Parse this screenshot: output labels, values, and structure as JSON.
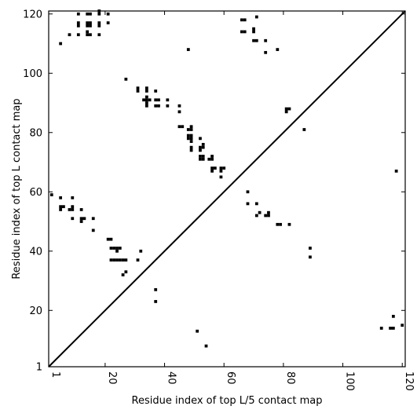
{
  "chart_data": {
    "type": "scatter",
    "title": "",
    "xlabel": "Residue index of top L/5 contact map",
    "ylabel": "Residue index of top L contact map",
    "xlim": [
      1,
      121
    ],
    "ylim": [
      1,
      121
    ],
    "x_ticks": [
      1,
      20,
      40,
      60,
      80,
      100,
      120
    ],
    "y_ticks": [
      1,
      20,
      40,
      60,
      80,
      100,
      120
    ],
    "x_tick_labels": [
      "1",
      "20",
      "40",
      "60",
      "80",
      "100",
      "120"
    ],
    "y_tick_labels": [
      "1",
      "20",
      "40",
      "60",
      "80",
      "100",
      "120"
    ],
    "x_tick_rotation": "vertical",
    "grid": false,
    "diagonal_line": true,
    "marker": "square",
    "color": "#000000",
    "series": [
      {
        "points": [
          [
            11,
            120
          ],
          [
            14,
            120
          ],
          [
            15,
            120
          ],
          [
            18,
            120
          ],
          [
            18,
            121
          ],
          [
            21,
            120
          ],
          [
            11,
            117
          ],
          [
            11,
            116
          ],
          [
            14,
            117
          ],
          [
            14,
            116
          ],
          [
            15,
            117
          ],
          [
            15,
            116
          ],
          [
            18,
            117
          ],
          [
            18,
            116
          ],
          [
            21,
            117
          ],
          [
            8,
            113
          ],
          [
            11,
            113
          ],
          [
            14,
            114
          ],
          [
            14,
            113
          ],
          [
            15,
            113
          ],
          [
            18,
            113
          ],
          [
            5,
            110
          ],
          [
            66,
            118
          ],
          [
            67,
            118
          ],
          [
            71,
            119
          ],
          [
            66,
            114
          ],
          [
            67,
            114
          ],
          [
            70,
            115
          ],
          [
            70,
            114
          ],
          [
            70,
            111
          ],
          [
            71,
            111
          ],
          [
            74,
            111
          ],
          [
            74,
            107
          ],
          [
            78,
            108
          ],
          [
            48,
            108
          ],
          [
            27,
            98
          ],
          [
            31,
            95
          ],
          [
            31,
            94
          ],
          [
            34,
            95
          ],
          [
            34,
            94
          ],
          [
            37,
            94
          ],
          [
            33,
            91
          ],
          [
            34,
            91
          ],
          [
            34,
            92
          ],
          [
            35,
            91
          ],
          [
            34,
            90
          ],
          [
            34,
            89
          ],
          [
            37,
            91
          ],
          [
            38,
            91
          ],
          [
            37,
            89
          ],
          [
            38,
            89
          ],
          [
            41,
            91
          ],
          [
            41,
            89
          ],
          [
            45,
            89
          ],
          [
            45,
            87
          ],
          [
            45,
            82
          ],
          [
            46,
            82
          ],
          [
            48,
            81
          ],
          [
            49,
            82
          ],
          [
            49,
            81
          ],
          [
            48,
            79
          ],
          [
            49,
            79
          ],
          [
            49,
            78
          ],
          [
            48,
            78
          ],
          [
            49,
            77
          ],
          [
            49,
            75
          ],
          [
            49,
            74
          ],
          [
            52,
            78
          ],
          [
            53,
            76
          ],
          [
            52,
            75
          ],
          [
            53,
            75
          ],
          [
            52,
            74
          ],
          [
            52,
            72
          ],
          [
            53,
            72
          ],
          [
            52,
            71
          ],
          [
            53,
            71
          ],
          [
            55,
            71
          ],
          [
            56,
            72
          ],
          [
            56,
            71
          ],
          [
            56,
            68
          ],
          [
            57,
            68
          ],
          [
            56,
            67
          ],
          [
            59,
            68
          ],
          [
            60,
            68
          ],
          [
            59,
            67
          ],
          [
            59,
            65
          ],
          [
            81,
            88
          ],
          [
            81,
            87
          ],
          [
            82,
            88
          ],
          [
            87,
            81
          ],
          [
            2,
            59
          ],
          [
            5,
            58
          ],
          [
            9,
            58
          ],
          [
            5,
            55
          ],
          [
            6,
            55
          ],
          [
            5,
            54
          ],
          [
            8,
            54
          ],
          [
            9,
            55
          ],
          [
            9,
            54
          ],
          [
            12,
            54
          ],
          [
            9,
            51
          ],
          [
            12,
            51
          ],
          [
            12,
            50
          ],
          [
            13,
            51
          ],
          [
            16,
            51
          ],
          [
            16,
            47
          ],
          [
            68,
            60
          ],
          [
            68,
            56
          ],
          [
            71,
            56
          ],
          [
            72,
            53
          ],
          [
            71,
            52
          ],
          [
            74,
            52
          ],
          [
            75,
            53
          ],
          [
            75,
            52
          ],
          [
            78,
            49
          ],
          [
            79,
            49
          ],
          [
            82,
            49
          ],
          [
            89,
            41
          ],
          [
            89,
            38
          ],
          [
            21,
            44
          ],
          [
            22,
            44
          ],
          [
            22,
            41
          ],
          [
            23,
            41
          ],
          [
            24,
            41
          ],
          [
            24,
            40
          ],
          [
            25,
            41
          ],
          [
            22,
            37
          ],
          [
            23,
            37
          ],
          [
            24,
            37
          ],
          [
            25,
            37
          ],
          [
            27,
            37
          ],
          [
            26,
            37
          ],
          [
            27,
            33
          ],
          [
            26,
            32
          ],
          [
            31,
            37
          ],
          [
            32,
            40
          ],
          [
            37,
            27
          ],
          [
            37,
            23
          ],
          [
            51,
            13
          ],
          [
            54,
            8
          ],
          [
            118,
            67
          ],
          [
            113,
            14
          ],
          [
            116,
            14
          ],
          [
            117,
            14
          ],
          [
            117,
            18
          ],
          [
            120,
            15
          ]
        ]
      }
    ]
  }
}
